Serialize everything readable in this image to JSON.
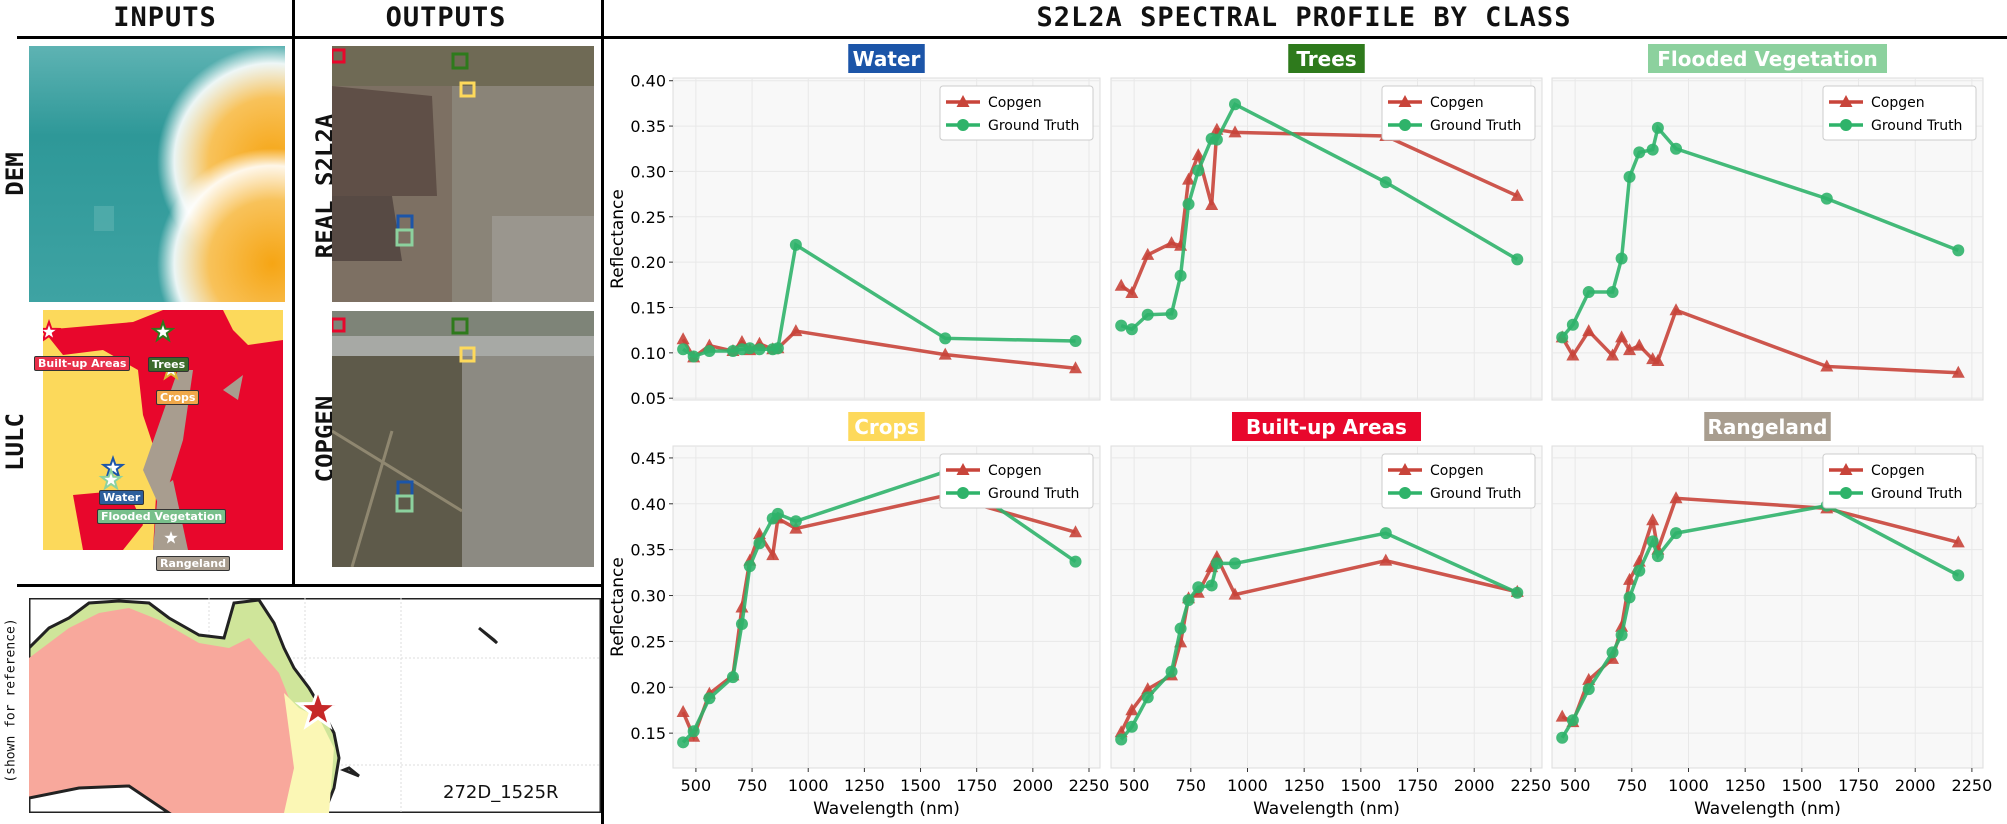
{
  "headers": {
    "inputs": "INPUTS",
    "outputs": "OUTPUTS",
    "profile": "S2L2A SPECTRAL PROFILE BY CLASS"
  },
  "inputs": {
    "dem_label": "DEM",
    "lulc_label": "LULC",
    "lulc_tags": {
      "built_up": "Built-up Areas",
      "trees": "Trees",
      "crops": "Crops",
      "water": "Water",
      "flooded": "Flooded Vegetation",
      "rangeland": "Rangeland"
    }
  },
  "outputs": {
    "real_label": "REAL  S2L2A",
    "copgen_label": "COPGEN"
  },
  "map": {
    "side_label": "(shown for reference)",
    "tile_id": "272D_1525R",
    "marker_icon": "star-icon"
  },
  "colors": {
    "copgen": "#c8443a",
    "ground_truth": "#2fb36a",
    "water": "#1c55a8",
    "trees": "#2e7a1c",
    "flooded_vegetation": "#8cd19e",
    "crops": "#fdd95b",
    "built_up": "#e8072c",
    "rangeland": "#a89d8f"
  },
  "chart_data": [
    {
      "type": "line",
      "title": "Water",
      "ylabel": "Reflectance",
      "xlabel": "",
      "ylim": [
        0.048,
        0.403
      ],
      "xlim": [
        398,
        2299
      ],
      "grid": true,
      "legend": "top-right",
      "yticks": [
        "0.05",
        "0.10",
        "0.15",
        "0.20",
        "0.25",
        "0.30",
        "0.35",
        "0.40"
      ],
      "xticks": [],
      "x": [
        443,
        490,
        560,
        665,
        705,
        740,
        783,
        842,
        865,
        945,
        1610,
        2190
      ],
      "series": [
        {
          "name": "Copgen",
          "values": [
            0.115,
            0.095,
            0.108,
            0.102,
            0.112,
            0.103,
            0.11,
            0.104,
            0.105,
            0.124,
            0.098,
            0.083
          ]
        },
        {
          "name": "Ground Truth",
          "values": [
            0.104,
            0.096,
            0.102,
            0.102,
            0.104,
            0.105,
            0.104,
            0.104,
            0.105,
            0.219,
            0.116,
            0.113
          ]
        }
      ]
    },
    {
      "type": "line",
      "title": "Trees",
      "ylabel": "",
      "xlabel": "",
      "ylim": [
        0.048,
        0.403
      ],
      "xlim": [
        398,
        2299
      ],
      "grid": true,
      "legend": "top-right",
      "yticks": [],
      "xticks": [],
      "x": [
        443,
        490,
        560,
        665,
        705,
        740,
        783,
        842,
        865,
        945,
        1610,
        2190
      ],
      "series": [
        {
          "name": "Copgen",
          "values": [
            0.174,
            0.166,
            0.208,
            0.221,
            0.218,
            0.291,
            0.318,
            0.263,
            0.346,
            0.343,
            0.339,
            0.273
          ]
        },
        {
          "name": "Ground Truth",
          "values": [
            0.13,
            0.126,
            0.142,
            0.143,
            0.185,
            0.264,
            0.301,
            0.336,
            0.335,
            0.374,
            0.288,
            0.203
          ]
        }
      ]
    },
    {
      "type": "line",
      "title": "Flooded Vegetation",
      "ylabel": "",
      "xlabel": "",
      "ylim": [
        0.048,
        0.403
      ],
      "xlim": [
        398,
        2299
      ],
      "grid": true,
      "legend": "top-right",
      "yticks": [],
      "xticks": [],
      "x": [
        443,
        490,
        560,
        665,
        705,
        740,
        783,
        842,
        865,
        945,
        1610,
        2190
      ],
      "series": [
        {
          "name": "Copgen",
          "values": [
            0.117,
            0.097,
            0.124,
            0.097,
            0.117,
            0.103,
            0.108,
            0.093,
            0.091,
            0.147,
            0.085,
            0.078
          ]
        },
        {
          "name": "Ground Truth",
          "values": [
            0.117,
            0.131,
            0.167,
            0.167,
            0.204,
            0.294,
            0.321,
            0.324,
            0.348,
            0.325,
            0.27,
            0.213
          ]
        }
      ]
    },
    {
      "type": "line",
      "title": "Crops",
      "ylabel": "Reflectance",
      "xlabel": "Wavelength (nm)",
      "ylim": [
        0.112,
        0.463
      ],
      "xlim": [
        398,
        2299
      ],
      "grid": true,
      "legend": "top-right",
      "yticks": [
        "0.15",
        "0.20",
        "0.25",
        "0.30",
        "0.35",
        "0.40",
        "0.45"
      ],
      "xticks": [
        "500",
        "750",
        "1000",
        "1250",
        "1500",
        "1750",
        "2000",
        "2250"
      ],
      "x": [
        443,
        490,
        560,
        665,
        705,
        740,
        783,
        842,
        865,
        945,
        1610,
        2190
      ],
      "series": [
        {
          "name": "Copgen",
          "values": [
            0.173,
            0.146,
            0.193,
            0.213,
            0.287,
            0.338,
            0.367,
            0.344,
            0.384,
            0.373,
            0.409,
            0.369
          ]
        },
        {
          "name": "Ground Truth",
          "values": [
            0.14,
            0.152,
            0.188,
            0.211,
            0.269,
            0.332,
            0.357,
            0.384,
            0.389,
            0.381,
            0.435,
            0.337
          ]
        }
      ]
    },
    {
      "type": "line",
      "title": "Built-up Areas",
      "ylabel": "",
      "xlabel": "Wavelength (nm)",
      "ylim": [
        0.112,
        0.463
      ],
      "xlim": [
        398,
        2299
      ],
      "grid": true,
      "legend": "top-right",
      "yticks": [],
      "xticks": [
        "500",
        "750",
        "1000",
        "1250",
        "1500",
        "1750",
        "2000",
        "2250"
      ],
      "x": [
        443,
        490,
        560,
        665,
        705,
        740,
        783,
        842,
        865,
        945,
        1610,
        2190
      ],
      "series": [
        {
          "name": "Copgen",
          "values": [
            0.151,
            0.175,
            0.198,
            0.213,
            0.249,
            0.297,
            0.303,
            0.331,
            0.342,
            0.301,
            0.338,
            0.304
          ]
        },
        {
          "name": "Ground Truth",
          "values": [
            0.143,
            0.157,
            0.189,
            0.217,
            0.264,
            0.295,
            0.309,
            0.311,
            0.335,
            0.335,
            0.368,
            0.303
          ]
        }
      ]
    },
    {
      "type": "line",
      "title": "Rangeland",
      "ylabel": "",
      "xlabel": "Wavelength (nm)",
      "ylim": [
        0.112,
        0.463
      ],
      "xlim": [
        398,
        2299
      ],
      "grid": true,
      "legend": "top-right",
      "yticks": [],
      "xticks": [
        "500",
        "750",
        "1000",
        "1250",
        "1500",
        "1750",
        "2000",
        "2250"
      ],
      "x": [
        443,
        490,
        560,
        665,
        705,
        740,
        783,
        842,
        865,
        945,
        1610,
        2190
      ],
      "series": [
        {
          "name": "Copgen",
          "values": [
            0.168,
            0.162,
            0.208,
            0.231,
            0.266,
            0.317,
            0.337,
            0.382,
            0.35,
            0.406,
            0.395,
            0.358
          ]
        },
        {
          "name": "Ground Truth",
          "values": [
            0.145,
            0.164,
            0.198,
            0.238,
            0.257,
            0.298,
            0.327,
            0.359,
            0.343,
            0.368,
            0.398,
            0.322
          ]
        }
      ]
    }
  ]
}
